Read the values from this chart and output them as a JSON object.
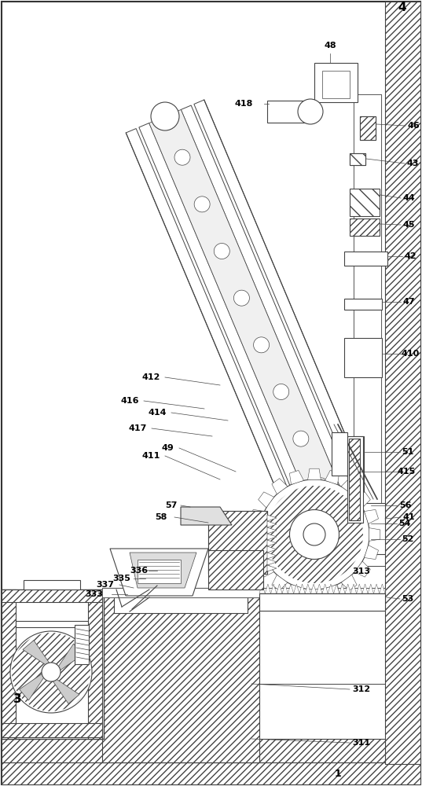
{
  "bg_color": "#ffffff",
  "lc": "#444444",
  "lw": 0.8,
  "figsize": [
    5.37,
    10.0
  ],
  "dpi": 100
}
